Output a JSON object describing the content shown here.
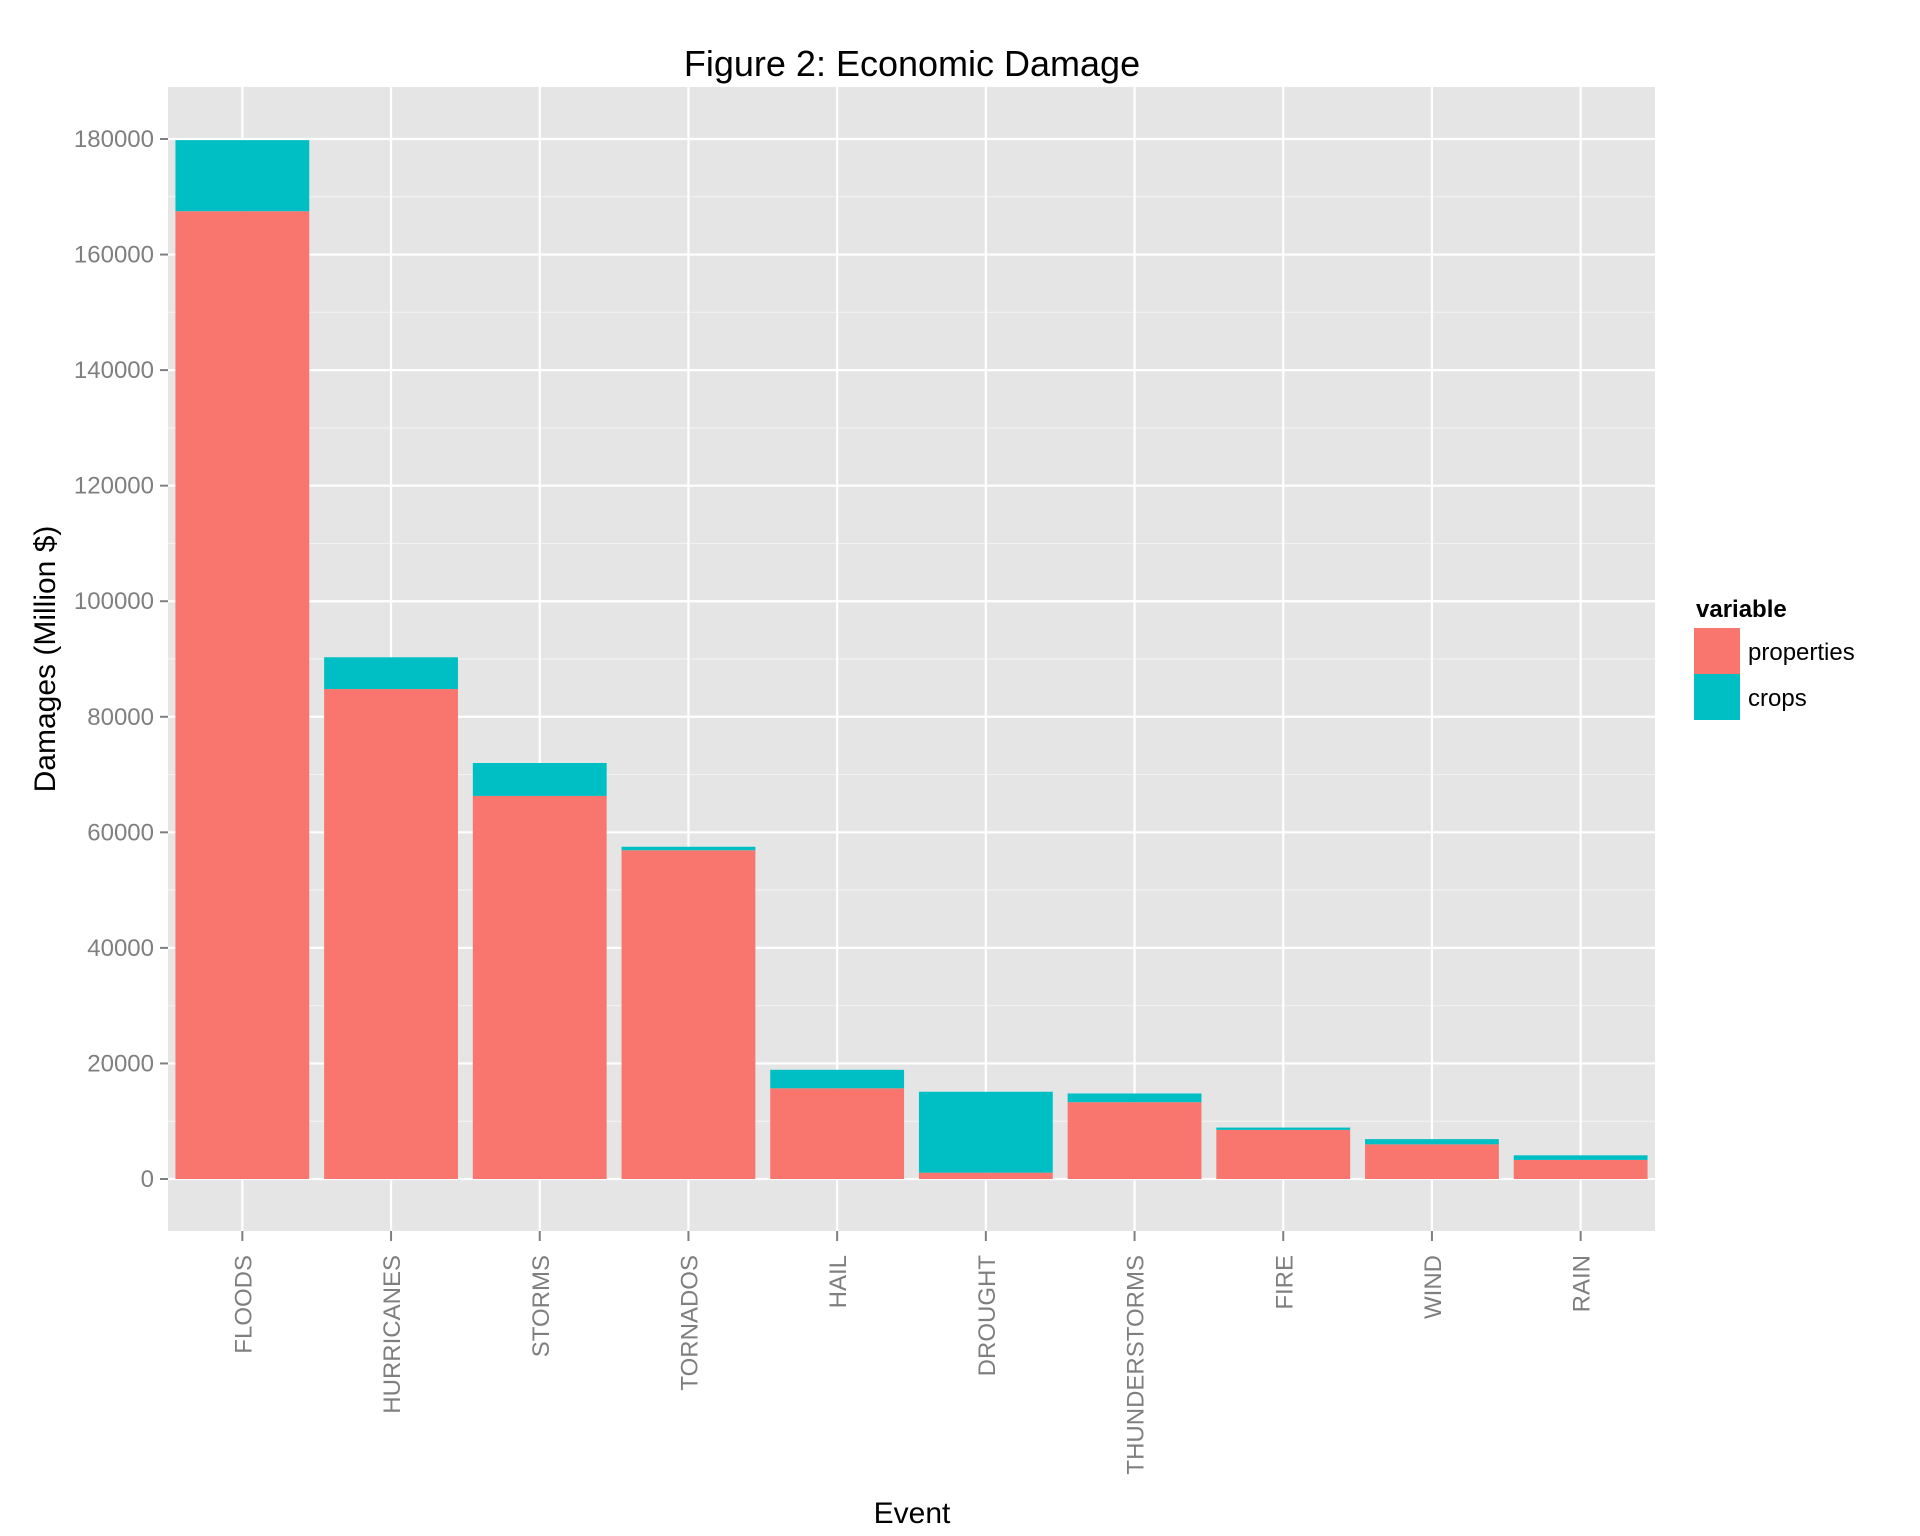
{
  "chart_data": {
    "type": "bar",
    "stacked": true,
    "title": "Figure 2: Economic Damage",
    "xlabel": "Event",
    "ylabel": "Damages (Million $)",
    "categories": [
      "FLOODS",
      "HURRICANES",
      "STORMS",
      "TORNADOS",
      "HAIL",
      "DROUGHT",
      "THUNDERSTORMS",
      "FIRE",
      "WIND",
      "RAIN"
    ],
    "series": [
      {
        "name": "properties",
        "color": "#F8766D",
        "values": [
          167500,
          84800,
          66300,
          56900,
          15700,
          1100,
          13300,
          8500,
          6000,
          3300
        ]
      },
      {
        "name": "crops",
        "color": "#00BFC4",
        "values": [
          12300,
          5500,
          5700,
          600,
          3200,
          14000,
          1500,
          400,
          900,
          800
        ]
      }
    ],
    "ylim": [
      -9000,
      189000
    ],
    "yticks": [
      0,
      20000,
      40000,
      60000,
      80000,
      100000,
      120000,
      140000,
      160000,
      180000
    ],
    "legend": {
      "title": "variable",
      "position": "right"
    },
    "grid": true
  }
}
